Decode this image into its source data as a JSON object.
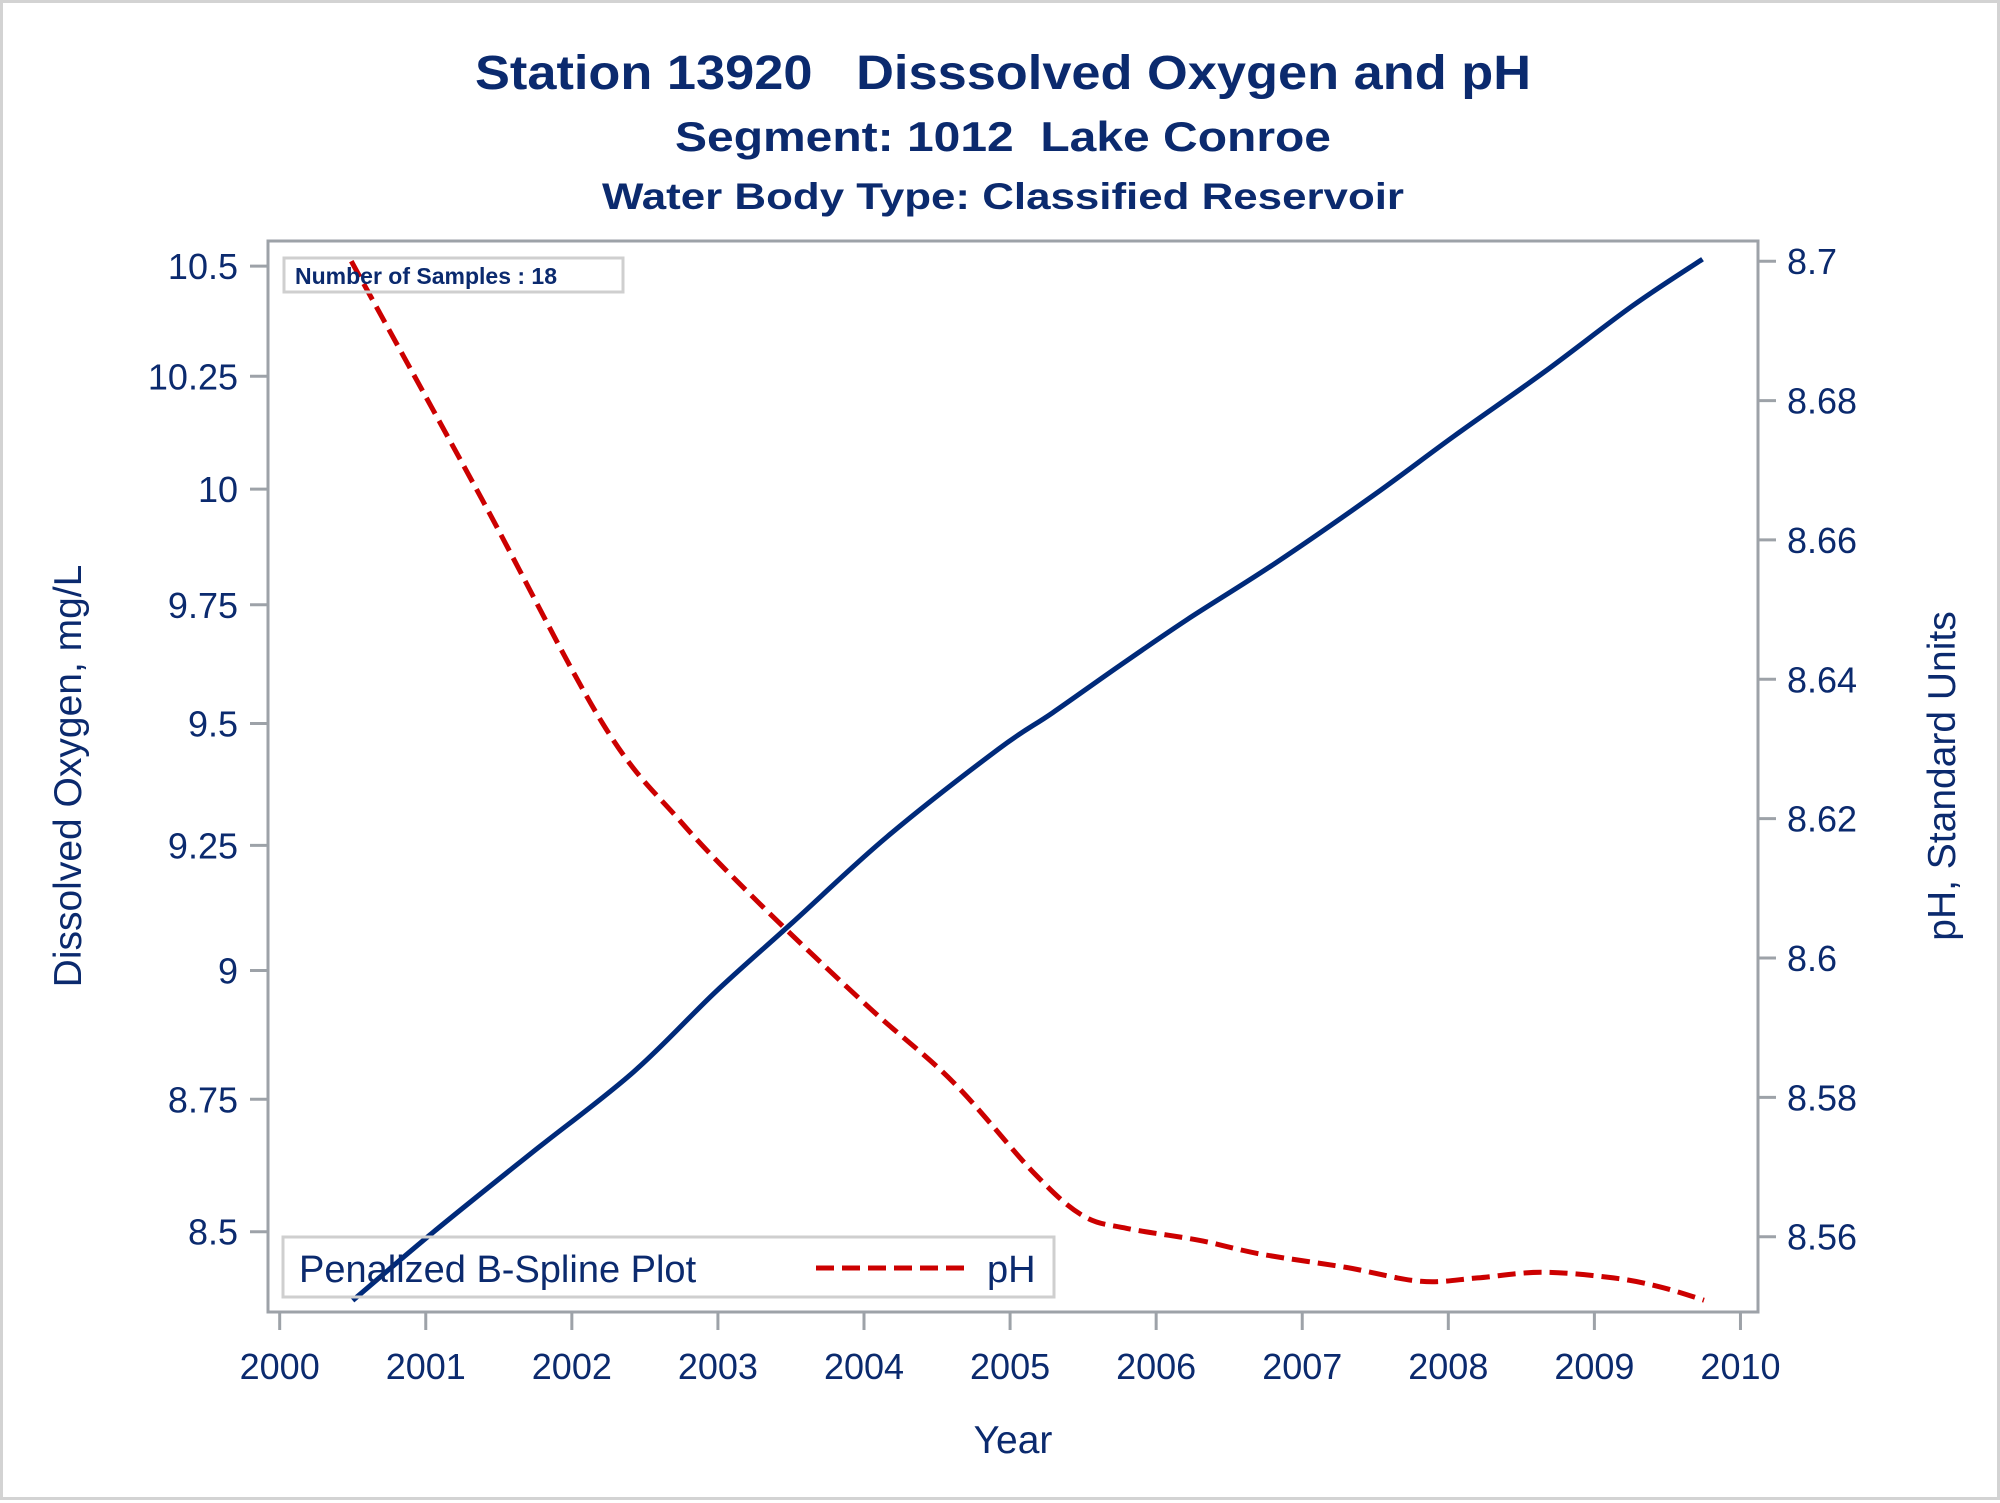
{
  "chart_data": {
    "type": "line",
    "title": "Station 13920   Disssolved Oxygen and pH",
    "subtitle": "Segment: 1012  Lake Conroe",
    "subtitle2": "Water Body Type: Classified Reservoir",
    "xlabel": "Year",
    "ylabel_left": "Dissolved Oxygen, mg/L",
    "ylabel_right": "pH, Standard Units",
    "x_ticks": [
      2000,
      2001,
      2002,
      2003,
      2004,
      2005,
      2006,
      2007,
      2008,
      2009,
      2010
    ],
    "x_tick_labels": [
      "2000",
      "2001",
      "2002",
      "2003",
      "2004",
      "2005",
      "2006",
      "2007",
      "2008",
      "2009",
      "2010"
    ],
    "xlim": [
      1999.92,
      2010.12
    ],
    "y_left": {
      "scale": "log",
      "ylim": [
        8.352,
        10.558
      ],
      "ticks": [
        8.5,
        8.75,
        9,
        9.25,
        9.5,
        9.75,
        10,
        10.25,
        10.5
      ],
      "tick_labels": [
        "8.5",
        "8.75",
        "9",
        "9.25",
        "9.5",
        "9.75",
        "10",
        "10.25",
        "10.5"
      ]
    },
    "y_right": {
      "scale": "linear",
      "ylim": [
        8.5492,
        8.7029
      ],
      "ticks": [
        8.56,
        8.58,
        8.6,
        8.62,
        8.64,
        8.66,
        8.68,
        8.7
      ],
      "tick_labels": [
        "8.56",
        "8.58",
        "8.6",
        "8.62",
        "8.64",
        "8.66",
        "8.68",
        "8.7"
      ]
    },
    "grid": false,
    "series": [
      {
        "name": "Dissolved Oxygen",
        "axis": "left",
        "style": "solid",
        "color": "#002a7a",
        "x": [
          2000.5,
          2001.05,
          2001.73,
          2002.42,
          2002.98,
          2003.51,
          2004.16,
          2004.92,
          2005.29,
          2005.75,
          2006.21,
          2006.82,
          2007.49,
          2008.04,
          2008.65,
          2009.26,
          2009.74
        ],
        "y": [
          8.373,
          8.499,
          8.649,
          8.802,
          8.957,
          9.095,
          9.268,
          9.447,
          9.522,
          9.621,
          9.718,
          9.84,
          9.987,
          10.117,
          10.258,
          10.409,
          10.516
        ]
      },
      {
        "name": "pH",
        "axis": "right",
        "style": "dashed",
        "color": "#cc0000",
        "x": [
          2000.49,
          2001.38,
          2002.21,
          2002.74,
          2003.31,
          2004.04,
          2004.61,
          2005.17,
          2005.5,
          2005.8,
          2006.29,
          2006.72,
          2007.3,
          2007.81,
          2008.2,
          2008.64,
          2009.13,
          2009.45,
          2009.75
        ],
        "y": [
          8.7,
          8.666,
          8.6337,
          8.6197,
          8.6073,
          8.5928,
          8.5822,
          8.569,
          8.563,
          8.5612,
          8.5595,
          8.5575,
          8.5556,
          8.5536,
          8.5541,
          8.5549,
          8.5541,
          8.5528,
          8.5509
        ]
      }
    ],
    "legend": {
      "title": "Penalized B-Spline Plot",
      "entries": [
        {
          "label": "pH",
          "style": "dashed",
          "color": "#cc0000"
        }
      ],
      "placement": "bottom-left inside"
    },
    "inset_note": "Number of Samples : 18",
    "colors": {
      "text": "#0b2a6e",
      "axis": "#9da2a8",
      "legend_border": "#cfcfcf",
      "outer_border": "#d3d3d3"
    }
  }
}
